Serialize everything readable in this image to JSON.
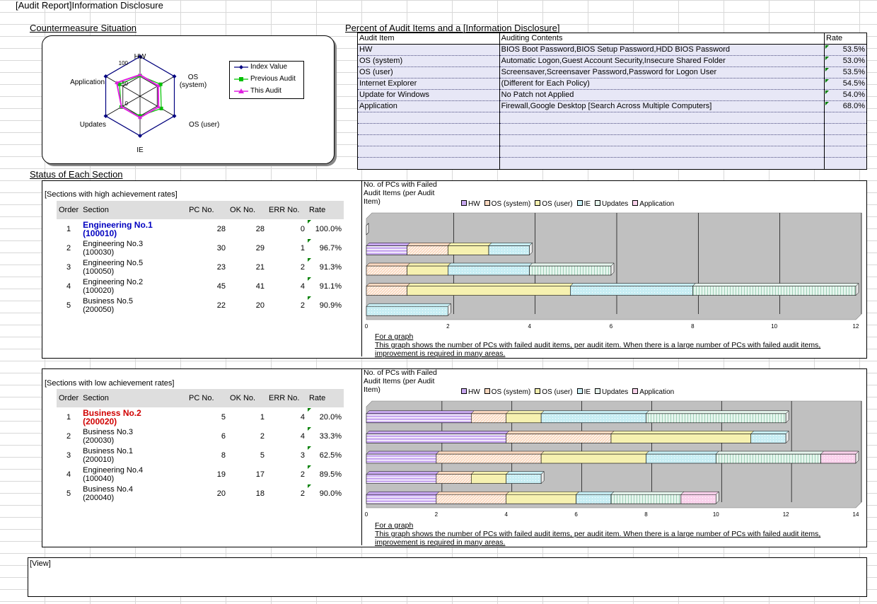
{
  "title": "[Audit Report]Information Disclosure",
  "countermeasure": {
    "heading": "Countermeasure Situation",
    "axes": [
      "HW",
      "OS\n(system)",
      "OS (user)",
      "IE",
      "Updates",
      "Application"
    ],
    "ticks": [
      "100",
      "50",
      "0"
    ],
    "legend": [
      "Index Value",
      "Previous Audit",
      "This Audit"
    ],
    "colors": {
      "index": "#000080",
      "previous": "#00c000",
      "this": "#e020e0"
    }
  },
  "percent": {
    "heading": "Percent of Audit Items and a [Information Disclosure]",
    "headers": [
      "Audit Item",
      "Auditing Contents",
      "Rate"
    ],
    "rows": [
      {
        "item": "HW",
        "contents": "BIOS Boot Password,BIOS Setup Password,HDD BIOS Password",
        "rate": "53.5%"
      },
      {
        "item": "OS (system)",
        "contents": "Automatic Logon,Guest Account Security,Insecure Shared Folder",
        "rate": "53.0%"
      },
      {
        "item": "OS (user)",
        "contents": "Screensaver,Screensaver Password,Password for Logon User",
        "rate": "53.5%"
      },
      {
        "item": "Internet Explorer",
        "contents": "(Different for Each Policy)",
        "rate": "54.5%"
      },
      {
        "item": "Update for Windows",
        "contents": "No Patch not Applied",
        "rate": "54.0%"
      },
      {
        "item": "Application",
        "contents": "Firewall,Google Desktop [Search Across Multiple Computers]",
        "rate": "68.0%"
      }
    ]
  },
  "status": {
    "heading": "Status of Each Section",
    "columns": [
      "Order",
      "Section",
      "PC No.",
      "OK No.",
      "ERR No.",
      "Rate"
    ],
    "high": {
      "label": "[Sections with high achievement rates]",
      "rows": [
        {
          "order": "1",
          "name": "Engineering No.1",
          "code": "(100010)",
          "pc": "28",
          "ok": "28",
          "err": "0",
          "rate": "100.0%"
        },
        {
          "order": "2",
          "name": "Engineering No.3",
          "code": "(100030)",
          "pc": "30",
          "ok": "29",
          "err": "1",
          "rate": "96.7%"
        },
        {
          "order": "3",
          "name": "Engineering No.5",
          "code": "(100050)",
          "pc": "23",
          "ok": "21",
          "err": "2",
          "rate": "91.3%"
        },
        {
          "order": "4",
          "name": "Engineering No.2",
          "code": "(100020)",
          "pc": "45",
          "ok": "41",
          "err": "4",
          "rate": "91.1%"
        },
        {
          "order": "5",
          "name": "Business No.5",
          "code": "(200050)",
          "pc": "22",
          "ok": "20",
          "err": "2",
          "rate": "90.9%"
        }
      ]
    },
    "low": {
      "label": "[Sections with low achievement rates]",
      "rows": [
        {
          "order": "1",
          "name": "Business No.2",
          "code": "(200020)",
          "pc": "5",
          "ok": "1",
          "err": "4",
          "rate": "20.0%"
        },
        {
          "order": "2",
          "name": "Business No.3",
          "code": "(200030)",
          "pc": "6",
          "ok": "2",
          "err": "4",
          "rate": "33.3%"
        },
        {
          "order": "3",
          "name": "Business No.1",
          "code": "(200010)",
          "pc": "8",
          "ok": "5",
          "err": "3",
          "rate": "62.5%"
        },
        {
          "order": "4",
          "name": "Engineering No.4",
          "code": "(100040)",
          "pc": "19",
          "ok": "17",
          "err": "2",
          "rate": "89.5%"
        },
        {
          "order": "5",
          "name": "Business No.4",
          "code": "(200040)",
          "pc": "20",
          "ok": "18",
          "err": "2",
          "rate": "90.0%"
        }
      ]
    }
  },
  "chart_data": [
    {
      "type": "bar",
      "orientation": "horizontal-stacked",
      "title": "No. of PCs with Failed Audit Items (per Audit Item)",
      "series_names": [
        "HW",
        "OS (system)",
        "OS (user)",
        "IE",
        "Updates",
        "Application"
      ],
      "xlim": [
        0,
        12
      ],
      "x_ticks": [
        "0",
        "2",
        "4",
        "6",
        "8",
        "10",
        "12"
      ],
      "rows": [
        [
          0,
          0,
          0,
          0,
          0,
          0
        ],
        [
          1,
          1,
          1,
          1,
          0,
          0
        ],
        [
          0,
          1,
          1,
          2,
          2,
          0
        ],
        [
          0,
          1,
          4,
          3,
          4,
          0
        ],
        [
          0,
          0,
          0,
          2,
          0,
          0
        ]
      ],
      "note_title": "For a graph",
      "note_text": "This graph shows the number of PCs with failed audit items, per audit item. When there is a large number of PCs with failed audit items, improvement is required in many areas."
    },
    {
      "type": "bar",
      "orientation": "horizontal-stacked",
      "title": "No. of PCs with Failed Audit Items (per Audit Item)",
      "series_names": [
        "HW",
        "OS (system)",
        "OS (user)",
        "IE",
        "Updates",
        "Application"
      ],
      "xlim": [
        0,
        14
      ],
      "x_ticks": [
        "0",
        "2",
        "4",
        "6",
        "8",
        "10",
        "12",
        "14"
      ],
      "rows": [
        [
          3,
          1,
          1,
          3,
          4,
          0
        ],
        [
          4,
          3,
          4,
          1,
          0,
          0
        ],
        [
          2,
          3,
          3,
          2,
          3,
          1
        ],
        [
          2,
          1,
          1,
          1,
          0,
          0
        ],
        [
          2,
          2,
          2,
          1,
          2,
          1
        ]
      ],
      "note_title": "For a graph",
      "note_text": "This graph shows the number of PCs with failed audit items, per audit item. When there is a large number of PCs with failed audit items, improvement is required in many areas."
    }
  ],
  "view": {
    "label": "[View]"
  }
}
